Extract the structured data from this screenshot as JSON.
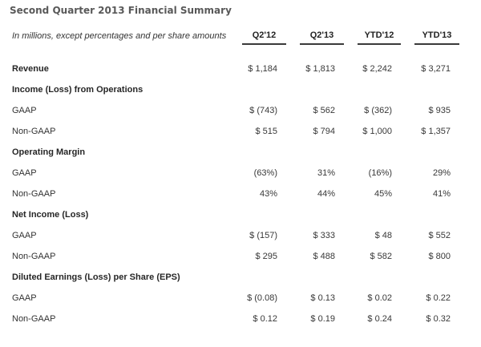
{
  "page": {
    "title": "Second Quarter 2013 Financial Summary"
  },
  "table": {
    "note": "In millions, except percentages and per share amounts",
    "columns": [
      "Q2'12",
      "Q2'13",
      "YTD'12",
      "YTD'13"
    ],
    "rows": [
      {
        "label": "Revenue",
        "bold": true,
        "values": [
          "$ 1,184",
          "$ 1,813",
          "$ 2,242",
          "$ 3,271"
        ]
      },
      {
        "label": "Income (Loss) from Operations",
        "bold": true,
        "values": [
          "",
          "",
          "",
          ""
        ]
      },
      {
        "label": "GAAP",
        "bold": false,
        "values": [
          "$ (743)",
          "$ 562",
          "$ (362)",
          "$ 935"
        ]
      },
      {
        "label": "Non-GAAP",
        "bold": false,
        "values": [
          "$ 515",
          "$ 794",
          "$ 1,000",
          "$ 1,357"
        ]
      },
      {
        "label": "Operating Margin",
        "bold": true,
        "values": [
          "",
          "",
          "",
          ""
        ]
      },
      {
        "label": "GAAP",
        "bold": false,
        "values": [
          "(63%)",
          "31%",
          "(16%)",
          "29%"
        ]
      },
      {
        "label": "Non-GAAP",
        "bold": false,
        "values": [
          "43%",
          "44%",
          "45%",
          "41%"
        ]
      },
      {
        "label": "Net Income (Loss)",
        "bold": true,
        "values": [
          "",
          "",
          "",
          ""
        ]
      },
      {
        "label": "GAAP",
        "bold": false,
        "values": [
          "$ (157)",
          "$ 333",
          "$ 48",
          "$ 552"
        ]
      },
      {
        "label": "Non-GAAP",
        "bold": false,
        "values": [
          "$ 295",
          "$ 488",
          "$ 582",
          "$ 800"
        ]
      },
      {
        "label": "Diluted Earnings (Loss) per Share (EPS)",
        "bold": true,
        "values": [
          "",
          "",
          "",
          ""
        ]
      },
      {
        "label": "GAAP",
        "bold": false,
        "values": [
          "$ (0.08)",
          "$ 0.13",
          "$ 0.02",
          "$ 0.22"
        ]
      },
      {
        "label": "Non-GAAP",
        "bold": false,
        "values": [
          "$ 0.12",
          "$ 0.19",
          "$ 0.24",
          "$ 0.32"
        ]
      }
    ],
    "colors": {
      "title_gray": "#595959",
      "heading_text": "#262626",
      "body_text": "#333333",
      "header_rule": "#3a3a3a",
      "background": "#ffffff"
    }
  }
}
